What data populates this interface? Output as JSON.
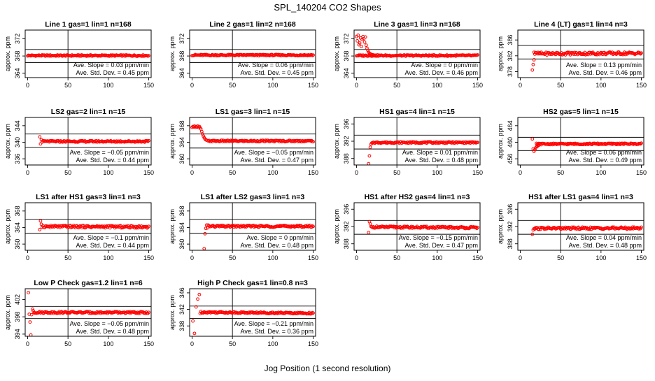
{
  "title": "SPL_140204  CO2 Shapes",
  "xlabel": "Jog Position (1 second resolution)",
  "colors": {
    "points": "#ff0000",
    "frame": "#000000",
    "background": "#ffffff"
  },
  "chart_data": [
    {
      "type": "scatter",
      "title": "Line 1 gas=1 lin=1 n=168",
      "ylabel": "approx. ppm",
      "xlim": [
        -3,
        153
      ],
      "ylim": [
        363,
        374
      ],
      "xticks": [
        "0",
        "50",
        "100",
        "150"
      ],
      "yticks": [
        "364",
        "368",
        "372"
      ],
      "hlines": [
        366.5,
        369.5
      ],
      "vline": 50,
      "x_start": 0,
      "x_end": 150,
      "baseline": 368.1,
      "start": [],
      "noise": 0.15,
      "trend": 0,
      "slope": "Ave. Slope = 0.03  ppm/min",
      "std": "Ave. Std. Dev. = 0.45  ppm"
    },
    {
      "type": "scatter",
      "title": "Line 2 gas=1 lin=2 n=168",
      "ylabel": "approx. ppm",
      "xlim": [
        -3,
        153
      ],
      "ylim": [
        363,
        374
      ],
      "xticks": [
        "0",
        "50",
        "100",
        "150"
      ],
      "yticks": [
        "364",
        "368",
        "372"
      ],
      "hlines": [
        366.5,
        369.5
      ],
      "vline": 50,
      "x_start": 0,
      "x_end": 150,
      "baseline": 368.2,
      "start": [],
      "noise": 0.15,
      "trend": 0,
      "slope": "Ave. Slope = 0.06  ppm/min",
      "std": "Ave. Std. Dev. = 0.45  ppm"
    },
    {
      "type": "scatter",
      "title": "Line 3 gas=1 lin=3 n=168",
      "ylabel": "approx. ppm",
      "xlim": [
        -3,
        153
      ],
      "ylim": [
        363,
        374
      ],
      "xticks": [
        "0",
        "50",
        "100",
        "150"
      ],
      "yticks": [
        "364",
        "368",
        "372"
      ],
      "hlines": [
        366.5,
        369.5
      ],
      "vline": 50,
      "x_start": 0,
      "x_end": 150,
      "baseline": 368.1,
      "start": [
        [
          0,
          372.5
        ],
        [
          1,
          371.5
        ],
        [
          2,
          372.8
        ],
        [
          3,
          370.6
        ],
        [
          4,
          371.0
        ],
        [
          5,
          372.2
        ],
        [
          6,
          370.2
        ],
        [
          7,
          371.8
        ],
        [
          8,
          372.5
        ],
        [
          9,
          372.0
        ],
        [
          10,
          371.2
        ],
        [
          11,
          372.4
        ],
        [
          12,
          370.5
        ],
        [
          13,
          369.8
        ],
        [
          14,
          369.3
        ],
        [
          15,
          368.9
        ],
        [
          16,
          368.6
        ],
        [
          17,
          368.5
        ],
        [
          18,
          368.4
        ],
        [
          19,
          368.3
        ],
        [
          20,
          368.3
        ],
        [
          22,
          368.2
        ],
        [
          24,
          368.2
        ]
      ],
      "noise": 0.15,
      "trend": 0,
      "slope": "Ave. Slope = 0  ppm/min",
      "std": "Ave. Std. Dev. = 0.46  ppm"
    },
    {
      "type": "scatter",
      "title": "Line 4 (LT) gas=1 lin=4 n=3",
      "ylabel": "approx. ppm",
      "xlim": [
        -3,
        153
      ],
      "ylim": [
        376.5,
        388.5
      ],
      "xticks": [
        "0",
        "50",
        "100",
        "150"
      ],
      "yticks": [
        "378",
        "382",
        "386"
      ],
      "hlines": [
        381.2,
        384.6
      ],
      "vline": 50,
      "x_start": 18,
      "x_end": 150,
      "baseline": 382.6,
      "start": [
        [
          15,
          378.4
        ],
        [
          16,
          379.8
        ],
        [
          17,
          381.0
        ],
        [
          17,
          382.9
        ]
      ],
      "noise": 0.35,
      "trend": 0.1,
      "slope": "Ave. Slope = 0.13  ppm/min",
      "std": "Ave. Std. Dev. = 0.46  ppm"
    },
    {
      "type": "scatter",
      "title": "LS2 gas=2 lin=1 n=15",
      "ylabel": "approx. ppm",
      "xlim": [
        -3,
        153
      ],
      "ylim": [
        334.5,
        346
      ],
      "xticks": [
        "0",
        "50",
        "100",
        "150"
      ],
      "yticks": [
        "336",
        "340",
        "344"
      ],
      "hlines": [
        338.8,
        342.0
      ],
      "vline": 50,
      "x_start": 18,
      "x_end": 150,
      "baseline": 340.2,
      "start": [
        [
          15,
          341.3
        ],
        [
          16,
          339.6
        ],
        [
          17,
          340.6
        ]
      ],
      "noise": 0.18,
      "trend": 0,
      "slope": "Ave. Slope = −0.05  ppm/min",
      "std": "Ave. Std. Dev. = 0.44  ppm"
    },
    {
      "type": "scatter",
      "title": "LS1 gas=3 lin=1 n=15",
      "ylabel": "approx. ppm",
      "xlim": [
        -3,
        153
      ],
      "ylim": [
        358.5,
        370
      ],
      "xticks": [
        "0",
        "50",
        "100",
        "150"
      ],
      "yticks": [
        "360",
        "364",
        "368"
      ],
      "hlines": [
        362.6,
        366.0
      ],
      "vline": 50,
      "x_start": 20,
      "x_end": 150,
      "baseline": 364.3,
      "start": [
        [
          0,
          367.6
        ],
        [
          1,
          367.8
        ],
        [
          2,
          367.7
        ],
        [
          3,
          367.9
        ],
        [
          4,
          367.6
        ],
        [
          5,
          367.8
        ],
        [
          6,
          367.7
        ],
        [
          7,
          367.9
        ],
        [
          8,
          367.6
        ],
        [
          9,
          367.8
        ],
        [
          10,
          367.5
        ],
        [
          11,
          367.2
        ],
        [
          12,
          366.6
        ],
        [
          13,
          366.0
        ],
        [
          14,
          365.5
        ],
        [
          15,
          365.1
        ],
        [
          16,
          364.8
        ],
        [
          17,
          364.6
        ],
        [
          18,
          364.5
        ]
      ],
      "noise": 0.18,
      "trend": 0,
      "slope": "Ave. Slope = −0.05  ppm/min",
      "std": "Ave. Std. Dev. = 0.47  ppm"
    },
    {
      "type": "scatter",
      "title": "HS1 gas=4 lin=1 n=15",
      "ylabel": "approx. ppm",
      "xlim": [
        -3,
        153
      ],
      "ylim": [
        386.5,
        397.5
      ],
      "xticks": [
        "0",
        "50",
        "100",
        "150"
      ],
      "yticks": [
        "388",
        "392",
        "396"
      ],
      "hlines": [
        390.2,
        393.4
      ],
      "vline": 50,
      "x_start": 20,
      "x_end": 150,
      "baseline": 391.7,
      "start": [
        [
          15,
          386.8
        ],
        [
          16,
          388.6
        ],
        [
          17,
          390.6
        ],
        [
          18,
          391.3
        ],
        [
          19,
          391.6
        ]
      ],
      "noise": 0.16,
      "trend": 0,
      "slope": "Ave. Slope = 0.01  ppm/min",
      "std": "Ave. Std. Dev. = 0.48  ppm"
    },
    {
      "type": "scatter",
      "title": "HS2 gas=5 lin=1 n=15",
      "ylabel": "approx. ppm",
      "xlim": [
        -3,
        153
      ],
      "ylim": [
        454.5,
        466
      ],
      "xticks": [
        "0",
        "50",
        "100",
        "150"
      ],
      "yticks": [
        "456",
        "460",
        "464"
      ],
      "hlines": [
        458.0,
        461.2
      ],
      "vline": 50,
      "x_start": 20,
      "x_end": 150,
      "baseline": 459.6,
      "start": [
        [
          15,
          460.8
        ],
        [
          16,
          458.4
        ],
        [
          17,
          457.8
        ],
        [
          18,
          458.2
        ],
        [
          19,
          458.6
        ],
        [
          20,
          458.9
        ],
        [
          21,
          459.0
        ],
        [
          22,
          459.2
        ],
        [
          23,
          459.3
        ]
      ],
      "noise": 0.16,
      "trend": 0.05,
      "slope": "Ave. Slope = 0.06  ppm/min",
      "std": "Ave. Std. Dev. = 0.49  ppm"
    },
    {
      "type": "scatter",
      "title": "LS1 after HS1 gas=3 lin=1 n=3",
      "ylabel": "approx. ppm",
      "xlim": [
        -3,
        153
      ],
      "ylim": [
        358.5,
        370
      ],
      "xticks": [
        "0",
        "50",
        "100",
        "150"
      ],
      "yticks": [
        "360",
        "364",
        "368"
      ],
      "hlines": [
        362.6,
        366.0
      ],
      "vline": 50,
      "x_start": 18,
      "x_end": 150,
      "baseline": 364.2,
      "start": [
        [
          15,
          363.5
        ],
        [
          16,
          365.6
        ],
        [
          17,
          364.8
        ]
      ],
      "noise": 0.28,
      "trend": -0.1,
      "slope": "Ave. Slope = −0.1  ppm/min",
      "std": "Ave. Std. Dev. = 0.44  ppm"
    },
    {
      "type": "scatter",
      "title": "LS1 after LS2 gas=3 lin=1 n=3",
      "ylabel": "approx. ppm",
      "xlim": [
        -3,
        153
      ],
      "ylim": [
        358.5,
        370
      ],
      "xticks": [
        "0",
        "50",
        "100",
        "150"
      ],
      "yticks": [
        "360",
        "364",
        "368"
      ],
      "hlines": [
        362.6,
        366.0
      ],
      "vline": 50,
      "x_start": 21,
      "x_end": 150,
      "baseline": 364.3,
      "start": [
        [
          15,
          358.9
        ],
        [
          16,
          362.5
        ],
        [
          17,
          363.8
        ],
        [
          18,
          364.6
        ],
        [
          19,
          363.9
        ],
        [
          20,
          364.6
        ]
      ],
      "noise": 0.22,
      "trend": 0,
      "slope": "Ave. Slope = 0  ppm/min",
      "std": "Ave. Std. Dev. = 0.48  ppm"
    },
    {
      "type": "scatter",
      "title": "HS1 after HS2 gas=4 lin=1 n=3",
      "ylabel": "approx. ppm",
      "xlim": [
        -3,
        153
      ],
      "ylim": [
        386.5,
        397.5
      ],
      "xticks": [
        "0",
        "50",
        "100",
        "150"
      ],
      "yticks": [
        "388",
        "392",
        "396"
      ],
      "hlines": [
        390.2,
        393.4
      ],
      "vline": 50,
      "x_start": 18,
      "x_end": 150,
      "baseline": 391.8,
      "start": [
        [
          15,
          390.6
        ],
        [
          16,
          393.1
        ],
        [
          17,
          392.6
        ]
      ],
      "noise": 0.22,
      "trend": -0.15,
      "slope": "Ave. Slope = −0.15  ppm/min",
      "std": "Ave. Std. Dev. = 0.47  ppm"
    },
    {
      "type": "scatter",
      "title": "HS1 after LS1 gas=4 lin=1 n=3",
      "ylabel": "approx. ppm",
      "xlim": [
        -3,
        153
      ],
      "ylim": [
        386.5,
        397.5
      ],
      "xticks": [
        "0",
        "50",
        "100",
        "150"
      ],
      "yticks": [
        "388",
        "392",
        "396"
      ],
      "hlines": [
        390.2,
        393.4
      ],
      "vline": 50,
      "x_start": 18,
      "x_end": 150,
      "baseline": 391.6,
      "start": [
        [
          15,
          390.2
        ],
        [
          16,
          391.2
        ],
        [
          17,
          391.5
        ]
      ],
      "noise": 0.25,
      "trend": 0.05,
      "slope": "Ave. Slope = 0.04  ppm/min",
      "std": "Ave. Std. Dev. = 0.48  ppm"
    },
    {
      "type": "scatter",
      "title": "Low P Check gas=1.2 lin=1 n=6",
      "ylabel": "approx. ppm",
      "xlim": [
        -3,
        153
      ],
      "ylim": [
        393.5,
        404.5
      ],
      "xticks": [
        "0",
        "50",
        "100",
        "150"
      ],
      "yticks": [
        "394",
        "398",
        "402"
      ],
      "hlines": [
        397.6,
        400.4
      ],
      "vline": 50,
      "x_start": 8,
      "x_end": 150,
      "baseline": 399.0,
      "start": [
        [
          1,
          403.6
        ],
        [
          2,
          398.6
        ],
        [
          3,
          396.8
        ],
        [
          4,
          393.8
        ],
        [
          5,
          398.5
        ],
        [
          6,
          399.8
        ],
        [
          7,
          399.4
        ]
      ],
      "noise": 0.2,
      "trend": -0.05,
      "slope": "Ave. Slope = −0.05  ppm/min",
      "std": "Ave. Std. Dev. = 0.48  ppm"
    },
    {
      "type": "scatter",
      "title": "High P Check gas=1 lin=0.8 n=3",
      "ylabel": "approx. ppm",
      "xlim": [
        -3,
        153
      ],
      "ylim": [
        335.5,
        347
      ],
      "xticks": [
        "0",
        "50",
        "100",
        "150"
      ],
      "yticks": [
        "338",
        "342",
        "346"
      ],
      "hlines": [
        339.8,
        342.8
      ],
      "vline": 50,
      "x_start": 12,
      "x_end": 150,
      "baseline": 341.2,
      "start": [
        [
          1,
          339.2
        ],
        [
          3,
          336.2
        ],
        [
          5,
          342.6
        ],
        [
          7,
          344.5
        ],
        [
          9,
          345.6
        ],
        [
          10,
          341.0
        ],
        [
          11,
          341.5
        ]
      ],
      "noise": 0.18,
      "trend": -0.25,
      "slope": "Ave. Slope = −0.21  ppm/min",
      "std": "Ave. Std. Dev. = 0.36  ppm"
    }
  ]
}
